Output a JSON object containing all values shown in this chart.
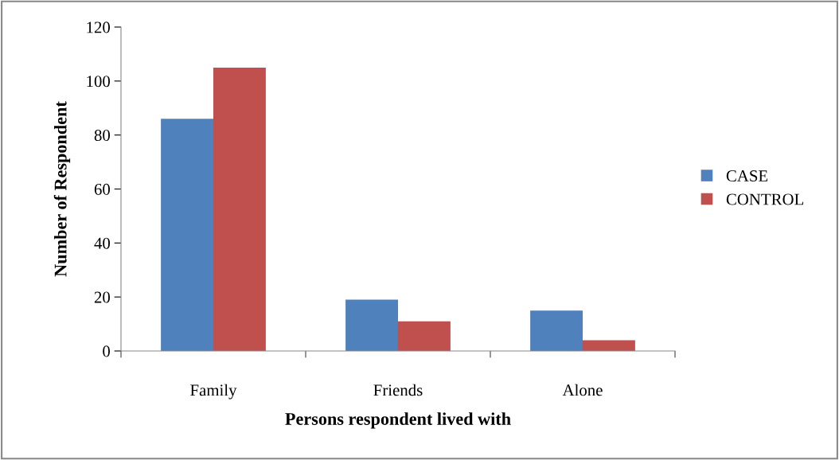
{
  "chart_data": {
    "type": "bar",
    "xlabel": "Persons respondent lived with",
    "ylabel": "Number of Respondent",
    "categories": [
      "Family",
      "Friends",
      "Alone"
    ],
    "series": [
      {
        "name": "CASE",
        "color": "#4f81bd",
        "values": [
          86,
          19,
          15
        ]
      },
      {
        "name": "CONTROL",
        "color": "#c0504d",
        "values": [
          105,
          11,
          4
        ]
      }
    ],
    "ylim": [
      0,
      120
    ],
    "yticks": [
      0,
      20,
      40,
      60,
      80,
      100,
      120
    ],
    "grid": false,
    "legend": "right"
  }
}
